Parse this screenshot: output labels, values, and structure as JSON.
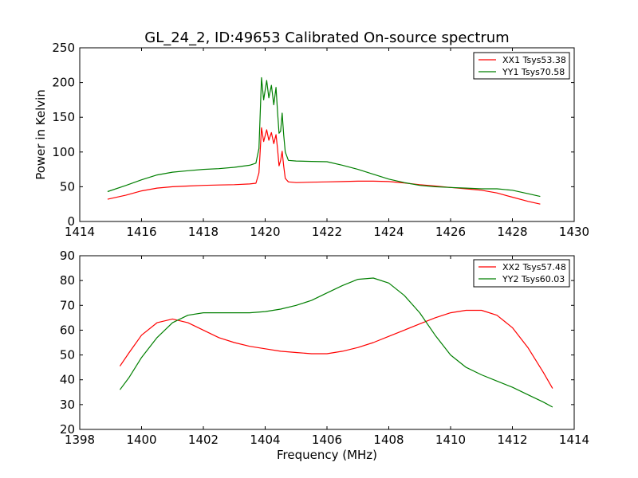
{
  "figure_title": "GL_24_2, ID:49653 Calibrated On-source spectrum",
  "colors": {
    "xx": "#ff0000",
    "yy": "#007f00",
    "frame": "#000000"
  },
  "chart_data": [
    {
      "type": "line",
      "title": "GL_24_2, ID:49653 Calibrated On-source spectrum",
      "xlabel": "",
      "ylabel": "Power in Kelvin",
      "xlim": [
        1414,
        1430
      ],
      "ylim": [
        0,
        250
      ],
      "xticks": [
        1414,
        1416,
        1418,
        1420,
        1422,
        1424,
        1426,
        1428,
        1430
      ],
      "yticks": [
        0,
        50,
        100,
        150,
        200,
        250
      ],
      "legend": "top-right",
      "grid": false,
      "series": [
        {
          "name": "XX1 Tsys53.38",
          "color": "#ff0000",
          "x": [
            1414.9,
            1415.5,
            1416.0,
            1416.5,
            1417.0,
            1417.5,
            1418.0,
            1418.5,
            1419.0,
            1419.5,
            1419.7,
            1419.8,
            1419.88,
            1419.95,
            1420.05,
            1420.12,
            1420.2,
            1420.28,
            1420.35,
            1420.4,
            1420.45,
            1420.5,
            1420.55,
            1420.6,
            1420.65,
            1420.75,
            1421.0,
            1421.5,
            1422.0,
            1422.5,
            1423.0,
            1423.5,
            1424.0,
            1424.5,
            1425.0,
            1425.5,
            1426.0,
            1426.5,
            1427.0,
            1427.5,
            1428.0,
            1428.5,
            1428.9
          ],
          "y": [
            32,
            38,
            44,
            48,
            50,
            51,
            52,
            52.5,
            53,
            54,
            55,
            70,
            135,
            115,
            132,
            117,
            128,
            112,
            125,
            105,
            80,
            88,
            101,
            80,
            62,
            57,
            56,
            56.5,
            57,
            57.5,
            58,
            58,
            57.5,
            55.5,
            53,
            51,
            49,
            47,
            45,
            41,
            35,
            29,
            25
          ]
        },
        {
          "name": "YY1 Tsys70.58",
          "color": "#007f00",
          "x": [
            1414.9,
            1415.5,
            1416.0,
            1416.5,
            1417.0,
            1417.5,
            1418.0,
            1418.5,
            1419.0,
            1419.5,
            1419.7,
            1419.8,
            1419.88,
            1419.95,
            1420.05,
            1420.12,
            1420.2,
            1420.28,
            1420.35,
            1420.4,
            1420.45,
            1420.5,
            1420.55,
            1420.6,
            1420.65,
            1420.75,
            1421.0,
            1421.5,
            1422.0,
            1422.5,
            1423.0,
            1423.5,
            1424.0,
            1424.5,
            1425.0,
            1425.5,
            1426.0,
            1426.5,
            1427.0,
            1427.5,
            1428.0,
            1428.5,
            1428.9
          ],
          "y": [
            43,
            52,
            60,
            67,
            71,
            73,
            75,
            76,
            78,
            81,
            84,
            105,
            207,
            175,
            203,
            178,
            196,
            168,
            193,
            158,
            127,
            130,
            156,
            125,
            100,
            88,
            87,
            86.5,
            86,
            81,
            75,
            68,
            61,
            56,
            52,
            50,
            49,
            48,
            47,
            47,
            45,
            40,
            36
          ]
        }
      ]
    },
    {
      "type": "line",
      "title": "",
      "xlabel": "Frequency (MHz)",
      "ylabel": "",
      "xlim": [
        1398,
        1414
      ],
      "ylim": [
        20,
        90
      ],
      "xticks": [
        1398,
        1400,
        1402,
        1404,
        1406,
        1408,
        1410,
        1412,
        1414
      ],
      "yticks": [
        20,
        30,
        40,
        50,
        60,
        70,
        80,
        90
      ],
      "legend": "top-right",
      "grid": false,
      "series": [
        {
          "name": "XX2 Tsys57.48",
          "color": "#ff0000",
          "x": [
            1399.3,
            1399.6,
            1400.0,
            1400.5,
            1401.0,
            1401.5,
            1402.0,
            1402.5,
            1403.0,
            1403.5,
            1404.0,
            1404.5,
            1405.0,
            1405.5,
            1406.0,
            1406.5,
            1407.0,
            1407.5,
            1408.0,
            1408.5,
            1409.0,
            1409.5,
            1410.0,
            1410.5,
            1411.0,
            1411.5,
            1412.0,
            1412.5,
            1413.0,
            1413.3
          ],
          "y": [
            45.5,
            51,
            58,
            63,
            64.5,
            63,
            60,
            57,
            55,
            53.5,
            52.5,
            51.5,
            51,
            50.5,
            50.5,
            51.5,
            53,
            55,
            57.5,
            60,
            62.5,
            65,
            67,
            68,
            68,
            66,
            61,
            53,
            43,
            36.5
          ]
        },
        {
          "name": "YY2 Tsys60.03",
          "color": "#007f00",
          "x": [
            1399.3,
            1399.6,
            1400.0,
            1400.5,
            1401.0,
            1401.5,
            1402.0,
            1402.5,
            1403.0,
            1403.5,
            1404.0,
            1404.5,
            1405.0,
            1405.5,
            1406.0,
            1406.5,
            1407.0,
            1407.5,
            1408.0,
            1408.5,
            1409.0,
            1409.5,
            1410.0,
            1410.5,
            1411.0,
            1411.5,
            1412.0,
            1412.5,
            1413.0,
            1413.3
          ],
          "y": [
            36,
            41,
            49,
            57,
            63,
            66,
            67,
            67,
            67,
            67,
            67.5,
            68.5,
            70,
            72,
            75,
            78,
            80.5,
            81,
            79,
            74,
            67,
            58,
            50,
            45,
            42,
            39.5,
            37,
            34,
            31,
            29
          ]
        }
      ]
    }
  ]
}
